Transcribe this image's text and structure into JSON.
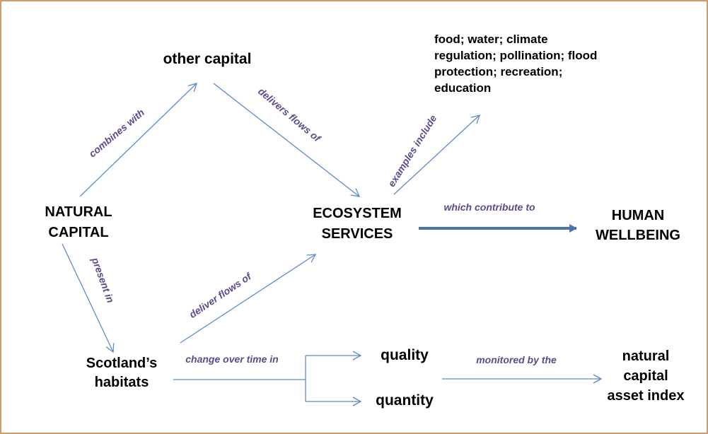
{
  "nodes": [
    {
      "lines": [
        "other capital"
      ]
    },
    {
      "lines": [
        "food; water; climate",
        "regulation; pollination; flood",
        "protection; recreation;",
        "education"
      ]
    },
    {
      "lines": [
        "NATURAL",
        "CAPITAL"
      ]
    },
    {
      "lines": [
        "ECOSYSTEM",
        "SERVICES"
      ]
    },
    {
      "lines": [
        "HUMAN",
        "WELLBEING"
      ]
    },
    {
      "lines": [
        "Scotland’s",
        "habitats"
      ]
    },
    {
      "lines": [
        "quality"
      ]
    },
    {
      "lines": [
        "quantity"
      ]
    },
    {
      "lines": [
        "natural",
        "capital",
        "asset index"
      ]
    }
  ],
  "edges": [
    {
      "label": "combines with"
    },
    {
      "label": "delivers flows of"
    },
    {
      "label": "examples include"
    },
    {
      "label": "which contribute to"
    },
    {
      "label": "present in"
    },
    {
      "label": "deliver flows of"
    },
    {
      "label": "change over time in"
    },
    {
      "label": "monitored by the"
    }
  ]
}
